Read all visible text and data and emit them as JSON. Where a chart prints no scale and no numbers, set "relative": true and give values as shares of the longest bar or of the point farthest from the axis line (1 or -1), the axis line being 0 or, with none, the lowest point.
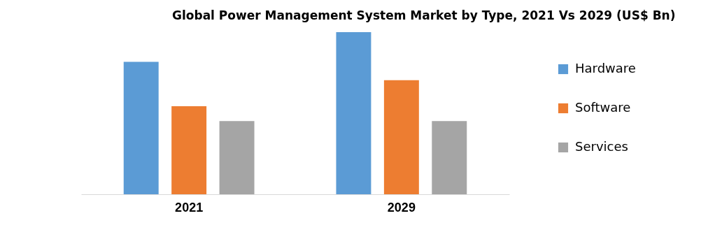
{
  "chart_data": {
    "type": "bar",
    "title": "Global Power Management System Market by Type, 2021 Vs 2029 (US$ Bn)",
    "relative": true,
    "categories": [
      "2021",
      "2029"
    ],
    "series": [
      {
        "name": "Hardware",
        "color": "#5b9bd5",
        "values": [
          0.817,
          1
        ]
      },
      {
        "name": "Software",
        "color": "#ed7d31",
        "values": [
          0.543,
          0.704
        ]
      },
      {
        "name": "Services",
        "color": "#a5a5a5",
        "values": [
          0.452,
          0.452
        ]
      }
    ],
    "legend": "right",
    "grid": false
  }
}
